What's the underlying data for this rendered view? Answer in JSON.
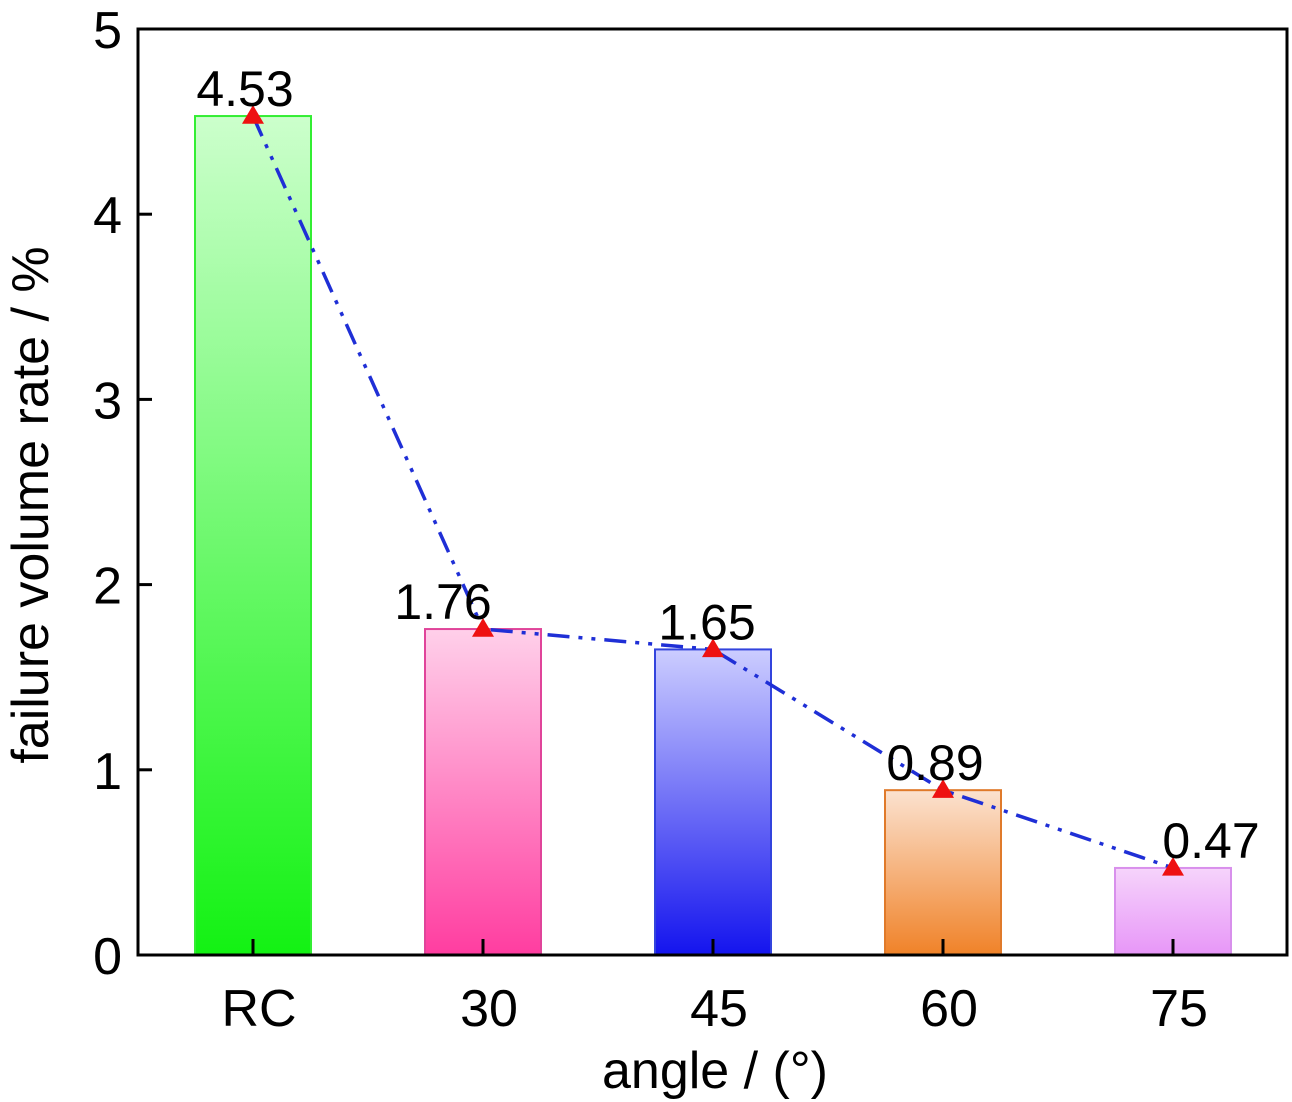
{
  "chart_data": {
    "type": "bar",
    "categories": [
      "RC",
      "30",
      "45",
      "60",
      "75"
    ],
    "values": [
      4.53,
      1.76,
      1.65,
      0.89,
      0.47
    ],
    "value_labels": [
      "4.53",
      "1.76",
      "1.65",
      "0.89",
      "0.47"
    ],
    "xlabel": "angle / (°)",
    "ylabel": "failure volume rate / %",
    "ylim": [
      0,
      5
    ],
    "yticks": [
      0,
      1,
      2,
      3,
      4,
      5
    ],
    "grid": false,
    "legend": "none",
    "overlay_line": {
      "color": "#1f2fd6",
      "style": "dash-dot",
      "marker": "triangle",
      "marker_color": "#ee1111"
    },
    "bar_colors": [
      {
        "top": "#ccffcc",
        "bottom": "#13f213",
        "edge": "#33ee33"
      },
      {
        "top": "#ffd0ea",
        "bottom": "#ff3da0",
        "edge": "#e0449a"
      },
      {
        "top": "#cccdff",
        "bottom": "#1414ee",
        "edge": "#3344dd"
      },
      {
        "top": "#fbe2d0",
        "bottom": "#f08228",
        "edge": "#e07a2a"
      },
      {
        "top": "#f6d4fb",
        "bottom": "#e796f8",
        "edge": "#d890ec"
      }
    ]
  }
}
